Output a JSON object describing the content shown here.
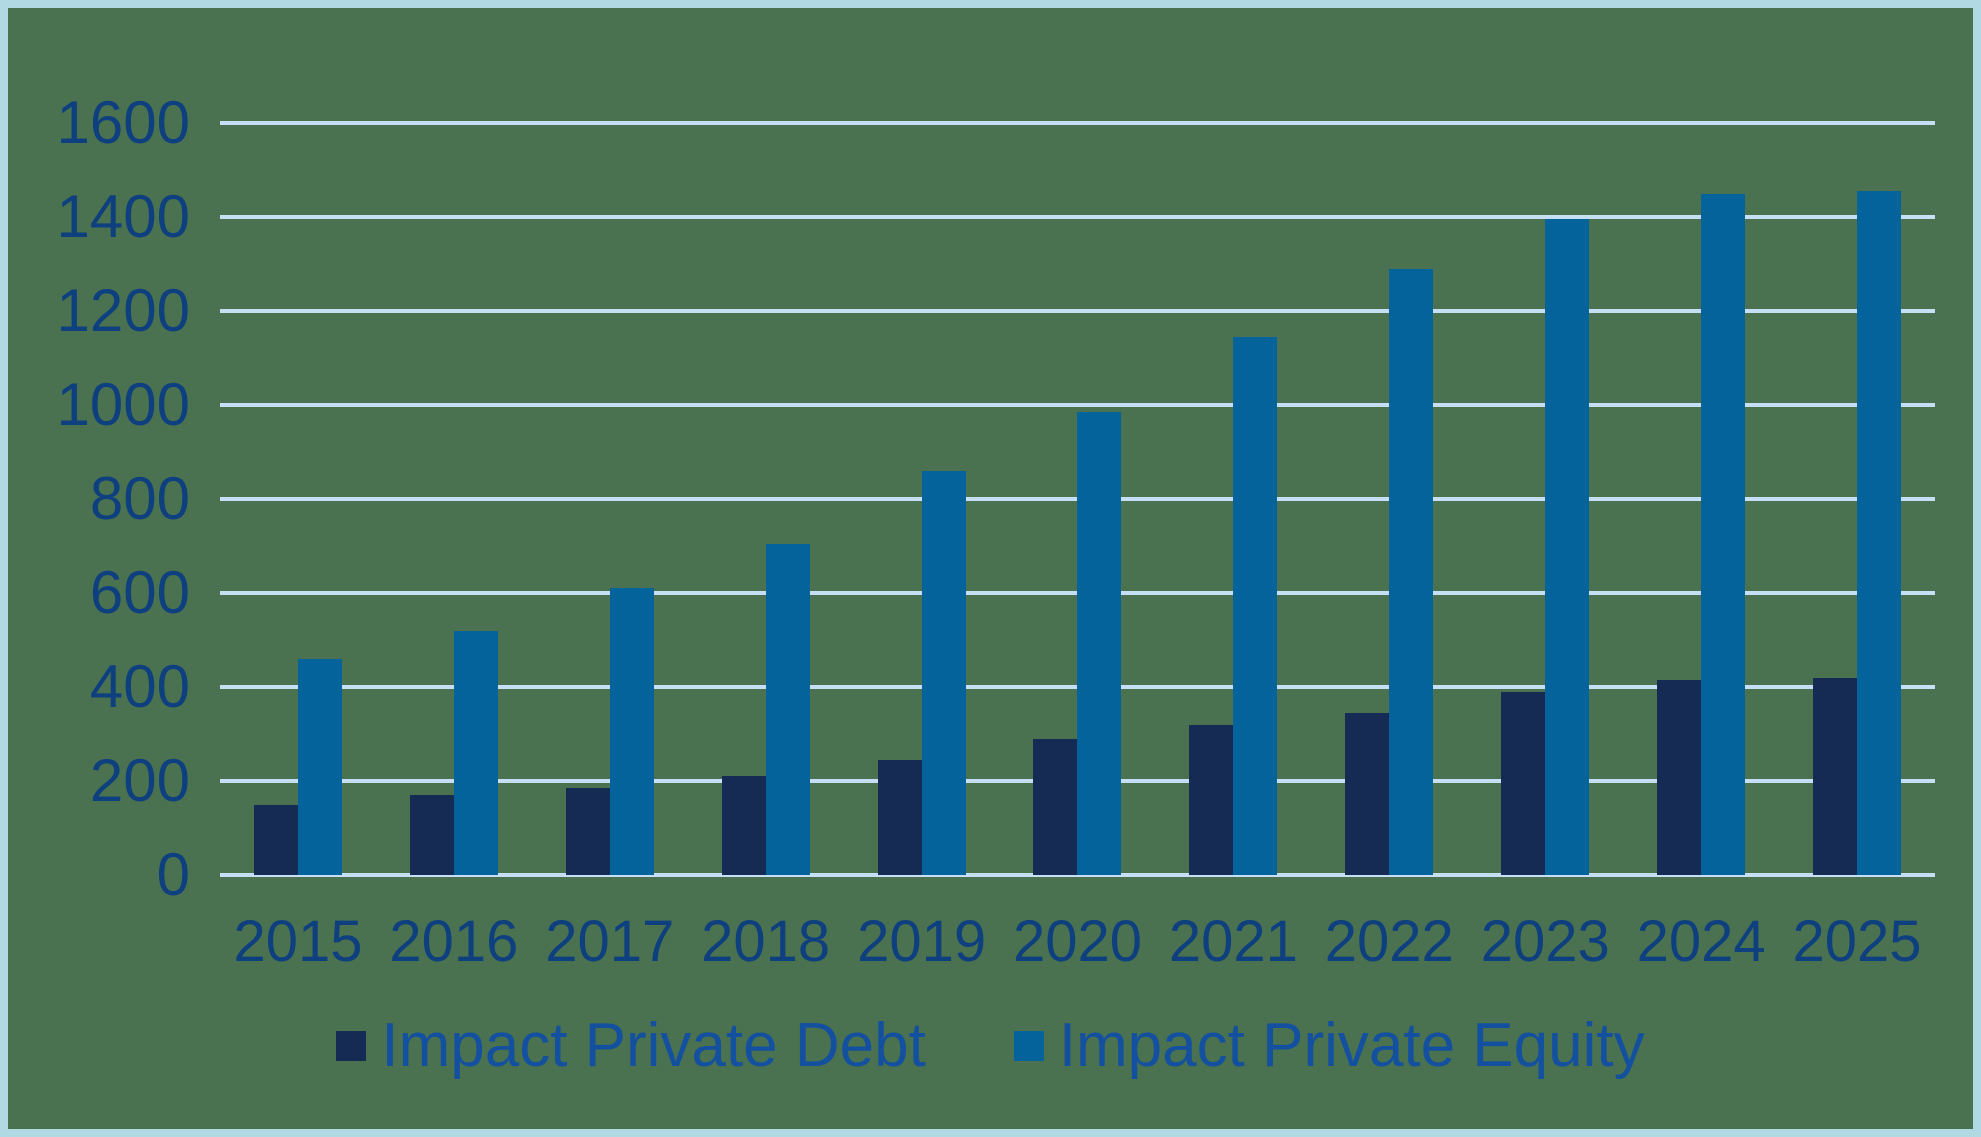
{
  "chart_data": {
    "type": "bar",
    "title": "",
    "xlabel": "",
    "ylabel": "",
    "categories": [
      "2015",
      "2016",
      "2017",
      "2018",
      "2019",
      "2020",
      "2021",
      "2022",
      "2023",
      "2024",
      "2025"
    ],
    "series": [
      {
        "name": "Impact Private Debt",
        "color": "#152B54",
        "values": [
          150,
          170,
          185,
          210,
          245,
          290,
          320,
          345,
          390,
          415,
          420
        ]
      },
      {
        "name": "Impact Private Equity",
        "color": "#04639B",
        "values": [
          460,
          520,
          610,
          705,
          860,
          985,
          1145,
          1290,
          1395,
          1450,
          1455
        ]
      }
    ],
    "ylim": [
      0,
      1600
    ],
    "yticks": [
      0,
      200,
      400,
      600,
      800,
      1000,
      1200,
      1400,
      1600
    ],
    "grid": true,
    "gridlines": "horizontal",
    "legend_position": "bottom"
  },
  "colors": {
    "frame_border": "#B0D9E4",
    "plot_background": "#4A7150",
    "gridline": "#C6DFF4",
    "axis_label": "#0E3F7F",
    "legend_label": "#1450A0"
  }
}
